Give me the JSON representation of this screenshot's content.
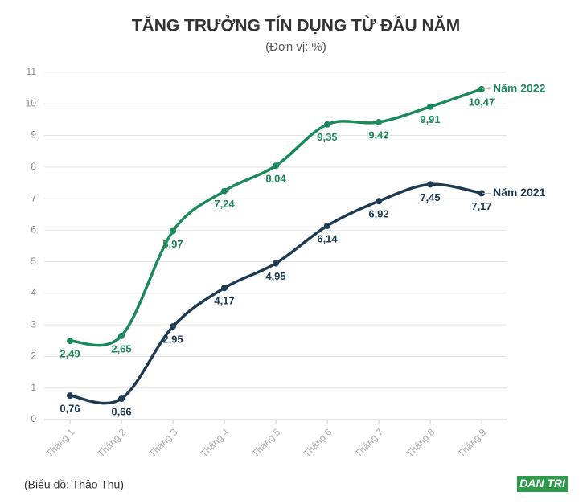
{
  "chart_data": {
    "type": "line",
    "title": "TĂNG TRƯỞNG TÍN DỤNG TỪ ĐẦU NĂM",
    "subtitle": "(Đơn vị: %)",
    "categories": [
      "Tháng 1",
      "Tháng 2",
      "Tháng 3",
      "Tháng 4",
      "Tháng 5",
      "Tháng 6",
      "Tháng 7",
      "Tháng 8",
      "Tháng 9"
    ],
    "series": [
      {
        "name": "Năm 2022",
        "color": "#1a8a5a",
        "values": [
          2.49,
          2.65,
          5.97,
          7.24,
          8.04,
          9.35,
          9.42,
          9.91,
          10.47
        ],
        "value_labels": [
          "2,49",
          "2,65",
          "5,97",
          "7,24",
          "8,04",
          "9,35",
          "9,42",
          "9,91",
          "10,47"
        ]
      },
      {
        "name": "Năm 2021",
        "color": "#1d3a52",
        "values": [
          0.76,
          0.66,
          2.95,
          4.17,
          4.95,
          6.14,
          6.92,
          7.45,
          7.17
        ],
        "value_labels": [
          "0,76",
          "0,66",
          "2,95",
          "4,17",
          "4,95",
          "6,14",
          "6,92",
          "7,45",
          "7,17"
        ]
      }
    ],
    "ylim": [
      0,
      11
    ],
    "yticks": [
      0,
      1,
      2,
      3,
      4,
      5,
      6,
      7,
      8,
      9,
      10,
      11
    ],
    "grid": true,
    "source": "(Biểu đồ: Thảo Thu)",
    "logo": "DAN TRI"
  }
}
